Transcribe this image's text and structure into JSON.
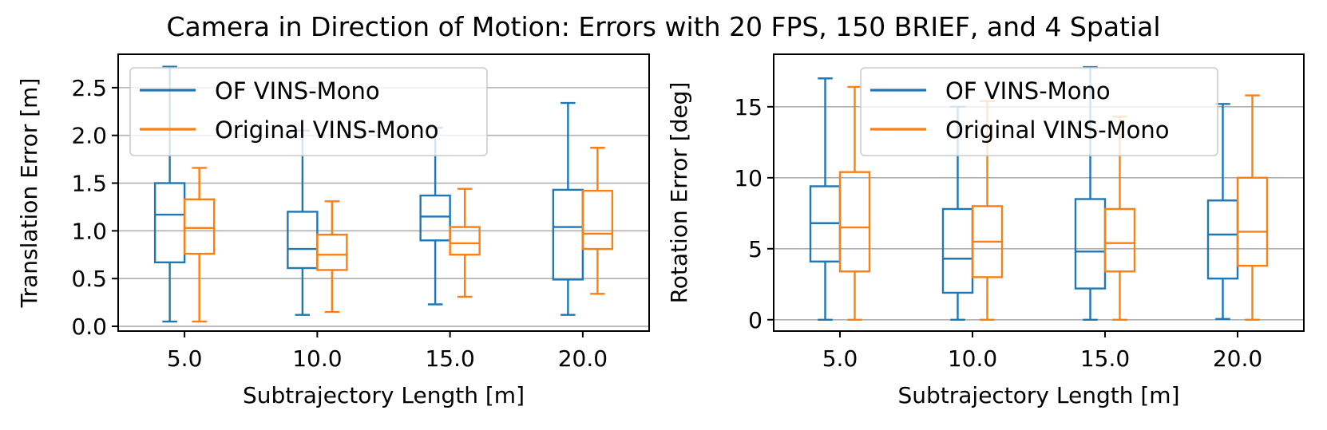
{
  "figure": {
    "title": "Camera in Direction of Motion: Errors with 20 FPS, 150 BRIEF, and 4 Spatial"
  },
  "chart_data": [
    {
      "type": "box",
      "title": "",
      "xlabel": "Subtrajectory Length [m]",
      "ylabel": "Translation Error [m]",
      "ylim": [
        -0.05,
        2.85
      ],
      "yticks": [
        0.0,
        0.5,
        1.0,
        1.5,
        2.0,
        2.5
      ],
      "ytick_labels": [
        "0.0",
        "0.5",
        "1.0",
        "1.5",
        "2.0",
        "2.5"
      ],
      "grid": "horizontal",
      "legend_position": "top-left",
      "categories": [
        "5.0",
        "10.0",
        "15.0",
        "20.0"
      ],
      "series": [
        {
          "name": "OF VINS-Mono",
          "color": "#1f77b4",
          "boxes": [
            {
              "whisker_low": 0.05,
              "q1": 0.67,
              "median": 1.17,
              "q3": 1.5,
              "whisker_high": 2.72
            },
            {
              "whisker_low": 0.12,
              "q1": 0.61,
              "median": 0.81,
              "q3": 1.2,
              "whisker_high": 2.05
            },
            {
              "whisker_low": 0.23,
              "q1": 0.9,
              "median": 1.15,
              "q3": 1.37,
              "whisker_high": 2.08
            },
            {
              "whisker_low": 0.12,
              "q1": 0.49,
              "median": 1.04,
              "q3": 1.43,
              "whisker_high": 2.34
            }
          ]
        },
        {
          "name": "Original VINS-Mono",
          "color": "#ff7f0e",
          "boxes": [
            {
              "whisker_low": 0.05,
              "q1": 0.76,
              "median": 1.03,
              "q3": 1.33,
              "whisker_high": 1.66
            },
            {
              "whisker_low": 0.15,
              "q1": 0.59,
              "median": 0.75,
              "q3": 0.96,
              "whisker_high": 1.31
            },
            {
              "whisker_low": 0.31,
              "q1": 0.75,
              "median": 0.87,
              "q3": 1.04,
              "whisker_high": 1.44
            },
            {
              "whisker_low": 0.34,
              "q1": 0.81,
              "median": 0.97,
              "q3": 1.42,
              "whisker_high": 1.87
            }
          ]
        }
      ]
    },
    {
      "type": "box",
      "title": "",
      "xlabel": "Subtrajectory Length [m]",
      "ylabel": "Rotation Error [deg]",
      "ylim": [
        -0.8,
        18.7
      ],
      "yticks": [
        0,
        5,
        10,
        15
      ],
      "ytick_labels": [
        "0",
        "5",
        "10",
        "15"
      ],
      "grid": "horizontal",
      "legend_position": "top-center",
      "categories": [
        "5.0",
        "10.0",
        "15.0",
        "20.0"
      ],
      "series": [
        {
          "name": "OF VINS-Mono",
          "color": "#1f77b4",
          "boxes": [
            {
              "whisker_low": 0.0,
              "q1": 4.1,
              "median": 6.8,
              "q3": 9.4,
              "whisker_high": 17.0
            },
            {
              "whisker_low": 0.0,
              "q1": 1.9,
              "median": 4.3,
              "q3": 7.8,
              "whisker_high": 15.0
            },
            {
              "whisker_low": 0.0,
              "q1": 2.2,
              "median": 4.8,
              "q3": 8.5,
              "whisker_high": 17.8
            },
            {
              "whisker_low": 0.05,
              "q1": 2.9,
              "median": 6.0,
              "q3": 8.4,
              "whisker_high": 15.2
            }
          ]
        },
        {
          "name": "Original VINS-Mono",
          "color": "#ff7f0e",
          "boxes": [
            {
              "whisker_low": 0.0,
              "q1": 3.4,
              "median": 6.5,
              "q3": 10.4,
              "whisker_high": 16.4
            },
            {
              "whisker_low": 0.0,
              "q1": 3.0,
              "median": 5.5,
              "q3": 8.0,
              "whisker_high": 15.4
            },
            {
              "whisker_low": 0.0,
              "q1": 3.4,
              "median": 5.4,
              "q3": 7.8,
              "whisker_high": 14.3
            },
            {
              "whisker_low": 0.0,
              "q1": 3.8,
              "median": 6.2,
              "q3": 10.0,
              "whisker_high": 15.8
            }
          ]
        }
      ]
    }
  ]
}
